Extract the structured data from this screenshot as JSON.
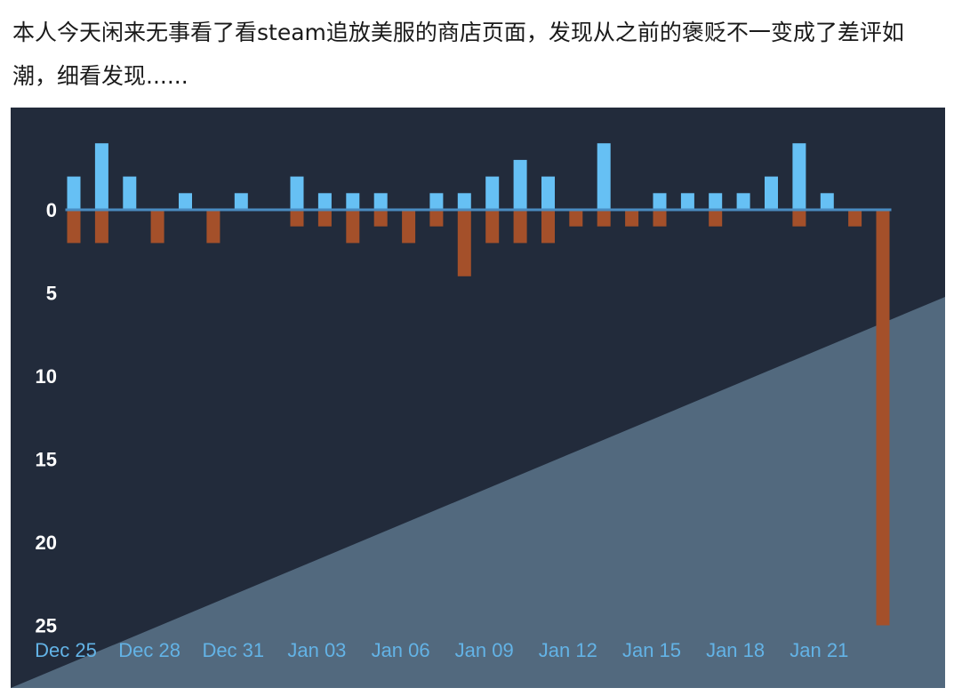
{
  "post": {
    "text": "本人今天闲来无事看了看steam追放美服的商店页面，发现从之前的褒贬不一变成了差评如潮，细看发现......"
  },
  "colors": {
    "background": "#222b3b",
    "positive": "#66c0f4",
    "negative": "#a4502a",
    "baseline": "#4a8bc0",
    "x_tick_text": "#63b3e6",
    "y_tick_text": "#ffffff",
    "overlay_wedge": "#52697e"
  },
  "chart_data": {
    "type": "bar",
    "legend": "none",
    "grid": false,
    "x_range": [
      "Dec 25",
      "Jan 23"
    ],
    "ylim": [
      -25,
      4
    ],
    "y_ticks": [
      0,
      5,
      10,
      15,
      20,
      25
    ],
    "x_ticks": [
      "Dec 25",
      "Dec 28",
      "Dec 31",
      "Jan 03",
      "Jan 06",
      "Jan 09",
      "Jan 12",
      "Jan 15",
      "Jan 18",
      "Jan 21"
    ],
    "categories": [
      "Dec 25",
      "Dec 26",
      "Dec 27",
      "Dec 28",
      "Dec 29",
      "Dec 30",
      "Dec 31",
      "Jan 01",
      "Jan 02",
      "Jan 03",
      "Jan 04",
      "Jan 05",
      "Jan 06",
      "Jan 07",
      "Jan 08",
      "Jan 09",
      "Jan 10",
      "Jan 11",
      "Jan 12",
      "Jan 13",
      "Jan 14",
      "Jan 15",
      "Jan 16",
      "Jan 17",
      "Jan 18",
      "Jan 19",
      "Jan 20",
      "Jan 21",
      "Jan 22",
      "Jan 23"
    ],
    "series": [
      {
        "polarity": "positive",
        "values": [
          2,
          4,
          2,
          0,
          1,
          0,
          1,
          0,
          2,
          1,
          1,
          1,
          0,
          1,
          1,
          2,
          3,
          2,
          0,
          4,
          0,
          1,
          1,
          1,
          1,
          2,
          4,
          1,
          0,
          0
        ]
      },
      {
        "polarity": "negative",
        "values": [
          -2,
          -2,
          0,
          -2,
          0,
          -2,
          0,
          0,
          -1,
          -1,
          -2,
          -1,
          -2,
          -1,
          -4,
          -2,
          -2,
          -2,
          -1,
          -1,
          -1,
          -1,
          0,
          -1,
          0,
          0,
          -1,
          0,
          -1,
          -25
        ]
      }
    ]
  }
}
